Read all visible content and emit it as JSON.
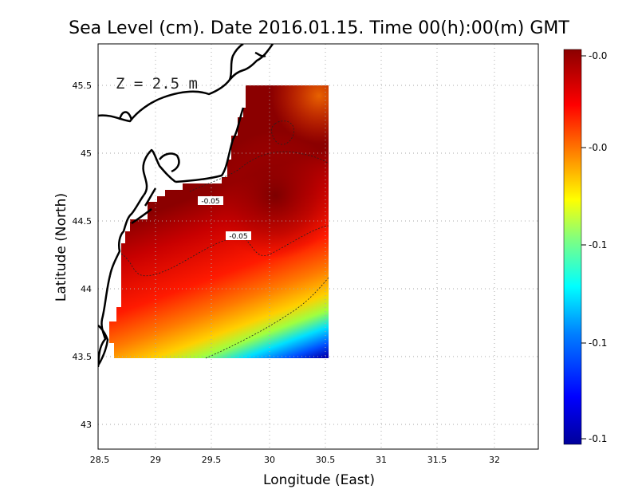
{
  "chart_data": {
    "type": "heatmap",
    "title": "Sea Level (cm). Date 2016.01.15. Time 00(h):00(m) GMT",
    "xlabel": "Longitude (East)",
    "ylabel": "Latitude (North)",
    "xlim": [
      28.5,
      32.4
    ],
    "ylim": [
      42.8,
      45.8
    ],
    "x_ticks": [
      "28.5",
      "29",
      "29.5",
      "30",
      "30.5",
      "31",
      "31.5",
      "32"
    ],
    "x_tick_values": [
      28.5,
      29,
      29.5,
      30,
      30.5,
      31,
      31.5,
      32
    ],
    "y_ticks": [
      "43",
      "43.5",
      "44",
      "44.5",
      "45",
      "45.5"
    ],
    "y_tick_values": [
      43,
      43.5,
      44,
      44.5,
      45,
      45.5
    ],
    "grid": true,
    "depth_annotation": "Z = 2.5 m",
    "colorbar": {
      "labels": [
        "-0.0",
        "-0.0",
        "-0.1",
        "-0.1",
        "-0.1"
      ],
      "colors": [
        "#00009a",
        "#0000ff",
        "#0080ff",
        "#00ffff",
        "#80ff80",
        "#ffff00",
        "#ff8000",
        "#ff0000",
        "#8b0000"
      ]
    },
    "contours": [
      {
        "label": "-0.05",
        "label_position": [
          29.47,
          44.64
        ]
      },
      {
        "label": "-0.05",
        "label_position": [
          29.72,
          44.39
        ]
      }
    ],
    "data_region": {
      "lon_range": [
        28.6,
        30.55
      ],
      "lat_range": [
        43.5,
        45.5
      ],
      "values_described": "Sea level anomaly; highest (dark red, near -0.0) around 30.2E 44.7N, decreasing to about -0.1 (blue) in the south-east corner near 30.5E 43.5N"
    }
  }
}
